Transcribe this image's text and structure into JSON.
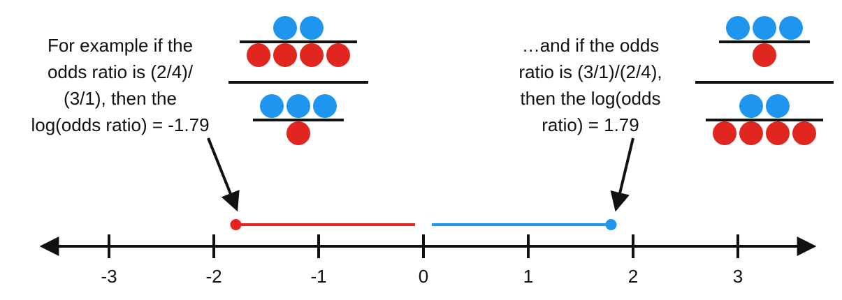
{
  "annotations": [
    {
      "lines": [
        "For example if the",
        "odds ratio is (2/4)/",
        "(3/1), then the",
        "log(odds ratio) = -1.79"
      ]
    },
    {
      "lines": [
        "…and if the odds",
        "ratio is (3/1)/(2/4),",
        "then the log(odds",
        "ratio) = 1.79"
      ]
    }
  ],
  "fractions": [
    {
      "numerator": {
        "blue": 2,
        "red": 4
      },
      "denominator": {
        "blue": 3,
        "red": 1
      }
    },
    {
      "numerator": {
        "blue": 3,
        "red": 1
      },
      "denominator": {
        "blue": 2,
        "red": 4
      }
    }
  ],
  "number_line": {
    "ticks": [
      -3,
      -2,
      -1,
      0,
      1,
      2,
      3
    ],
    "segments": [
      {
        "from": -1.79,
        "to": 0,
        "color": "#e0261f"
      },
      {
        "from": 0,
        "to": 1.79,
        "color": "#1e96f0"
      }
    ]
  }
}
